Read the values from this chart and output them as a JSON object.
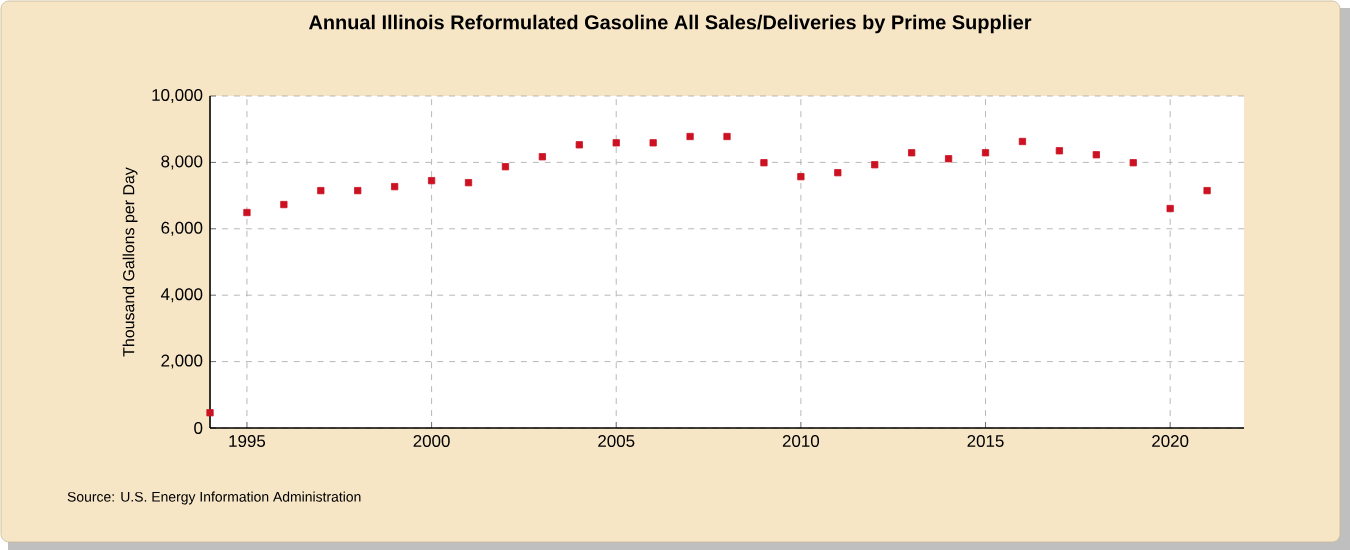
{
  "chart_data": {
    "type": "scatter",
    "title": "Annual Illinois Reformulated Gasoline All Sales/Deliveries by Prime Supplier",
    "ylabel": "Thousand Gallons per Day",
    "x": [
      1994,
      1995,
      1996,
      1997,
      1998,
      1999,
      2000,
      2001,
      2002,
      2003,
      2004,
      2005,
      2006,
      2007,
      2008,
      2009,
      2010,
      2011,
      2012,
      2013,
      2014,
      2015,
      2016,
      2017,
      2018,
      2019,
      2020,
      2021
    ],
    "series": [
      {
        "color": "#cc1122",
        "values": [
          460,
          6490,
          6730,
          7150,
          7150,
          7270,
          7450,
          7390,
          7870,
          8170,
          8530,
          8590,
          8590,
          8780,
          8780,
          7990,
          7570,
          7690,
          7930,
          8290,
          8110,
          8290,
          8630,
          8350,
          8230,
          7990,
          6610,
          7150
        ]
      }
    ],
    "xlim": [
      1994,
      2022
    ],
    "xticks": [
      1995,
      2000,
      2005,
      2010,
      2015,
      2020
    ],
    "ylim": [
      0,
      10000
    ],
    "yticks": [
      {
        "value": 0,
        "label": "0"
      },
      {
        "value": 2000,
        "label": "2,000"
      },
      {
        "value": 4000,
        "label": "4,000"
      },
      {
        "value": 6000,
        "label": "6,000"
      },
      {
        "value": 8000,
        "label": "8,000"
      },
      {
        "value": 10000,
        "label": "10,000"
      }
    ],
    "grid": true,
    "marker": "square",
    "annotations": [
      "Source: U.S. Energy Information Administration"
    ]
  }
}
